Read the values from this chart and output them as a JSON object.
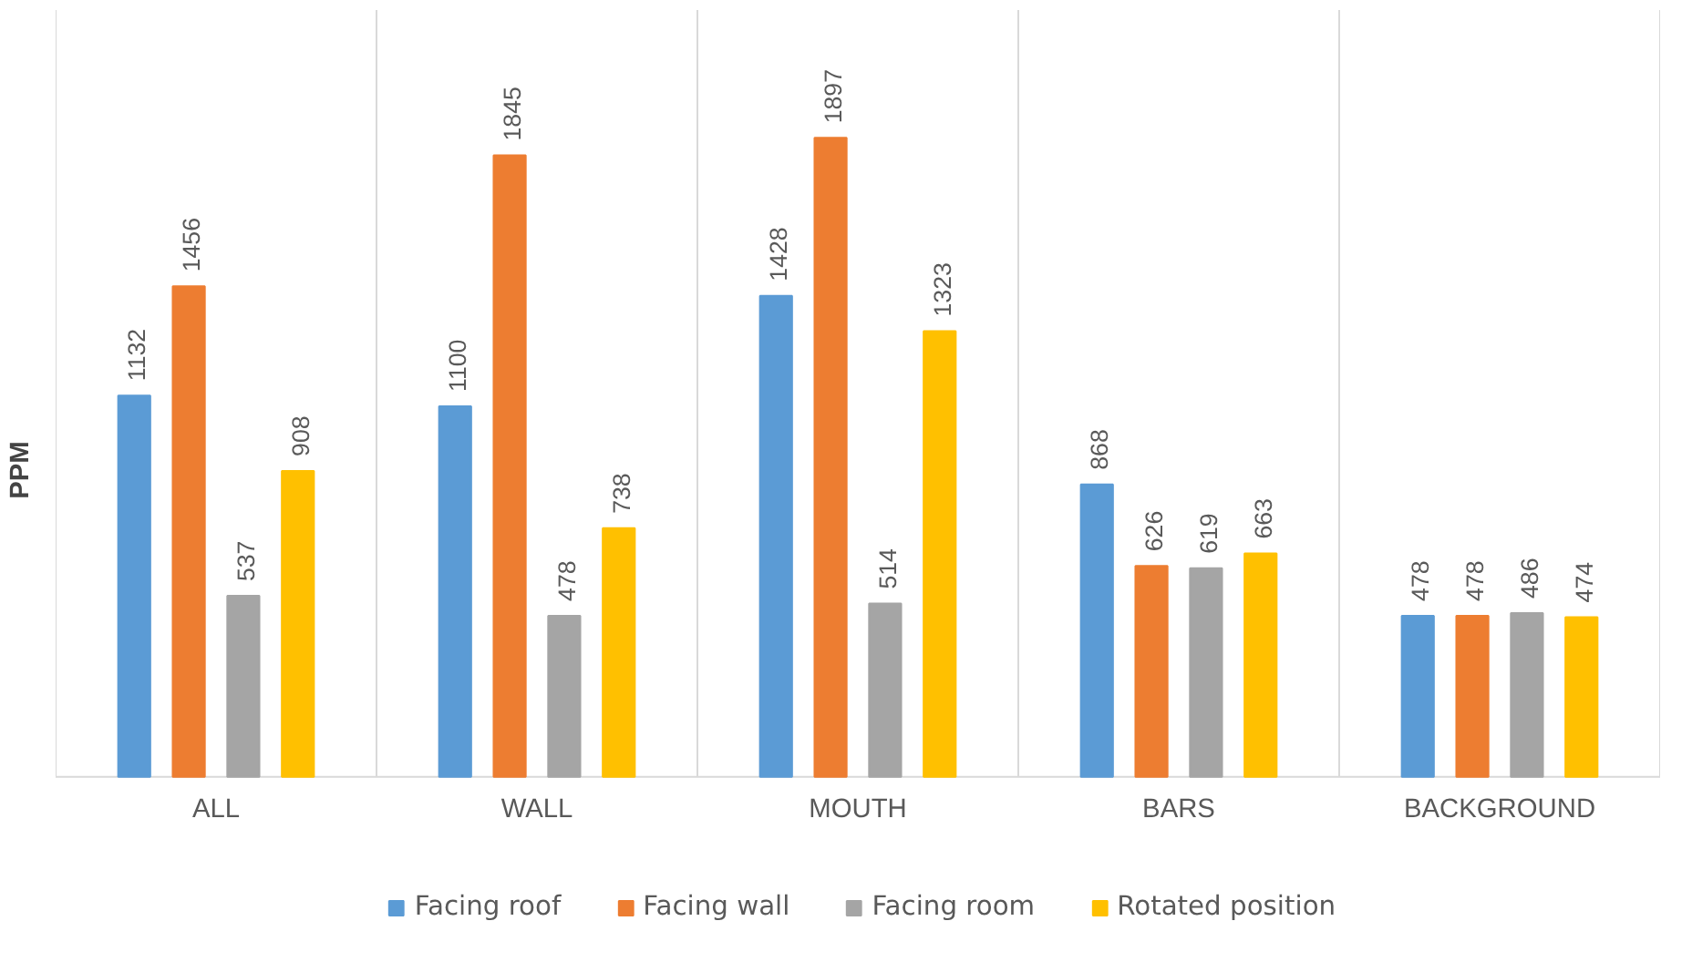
{
  "chart_data": {
    "type": "bar",
    "ylabel": "PPM",
    "categories": [
      "ALL",
      "WALL",
      "MOUTH",
      "BARS",
      "BACKGROUND"
    ],
    "series": [
      {
        "name": "Facing roof",
        "color": "#5b9bd5",
        "values": [
          1132,
          1100,
          1428,
          868,
          478
        ]
      },
      {
        "name": "Facing wall",
        "color": "#ed7d31",
        "values": [
          1456,
          1845,
          1897,
          626,
          478
        ]
      },
      {
        "name": "Facing room",
        "color": "#a5a5a5",
        "values": [
          537,
          478,
          514,
          619,
          486
        ]
      },
      {
        "name": "Rotated position",
        "color": "#ffc000",
        "values": [
          908,
          738,
          1323,
          663,
          474
        ]
      }
    ],
    "data_labels": true,
    "grid": "x",
    "legend": "bottom"
  }
}
